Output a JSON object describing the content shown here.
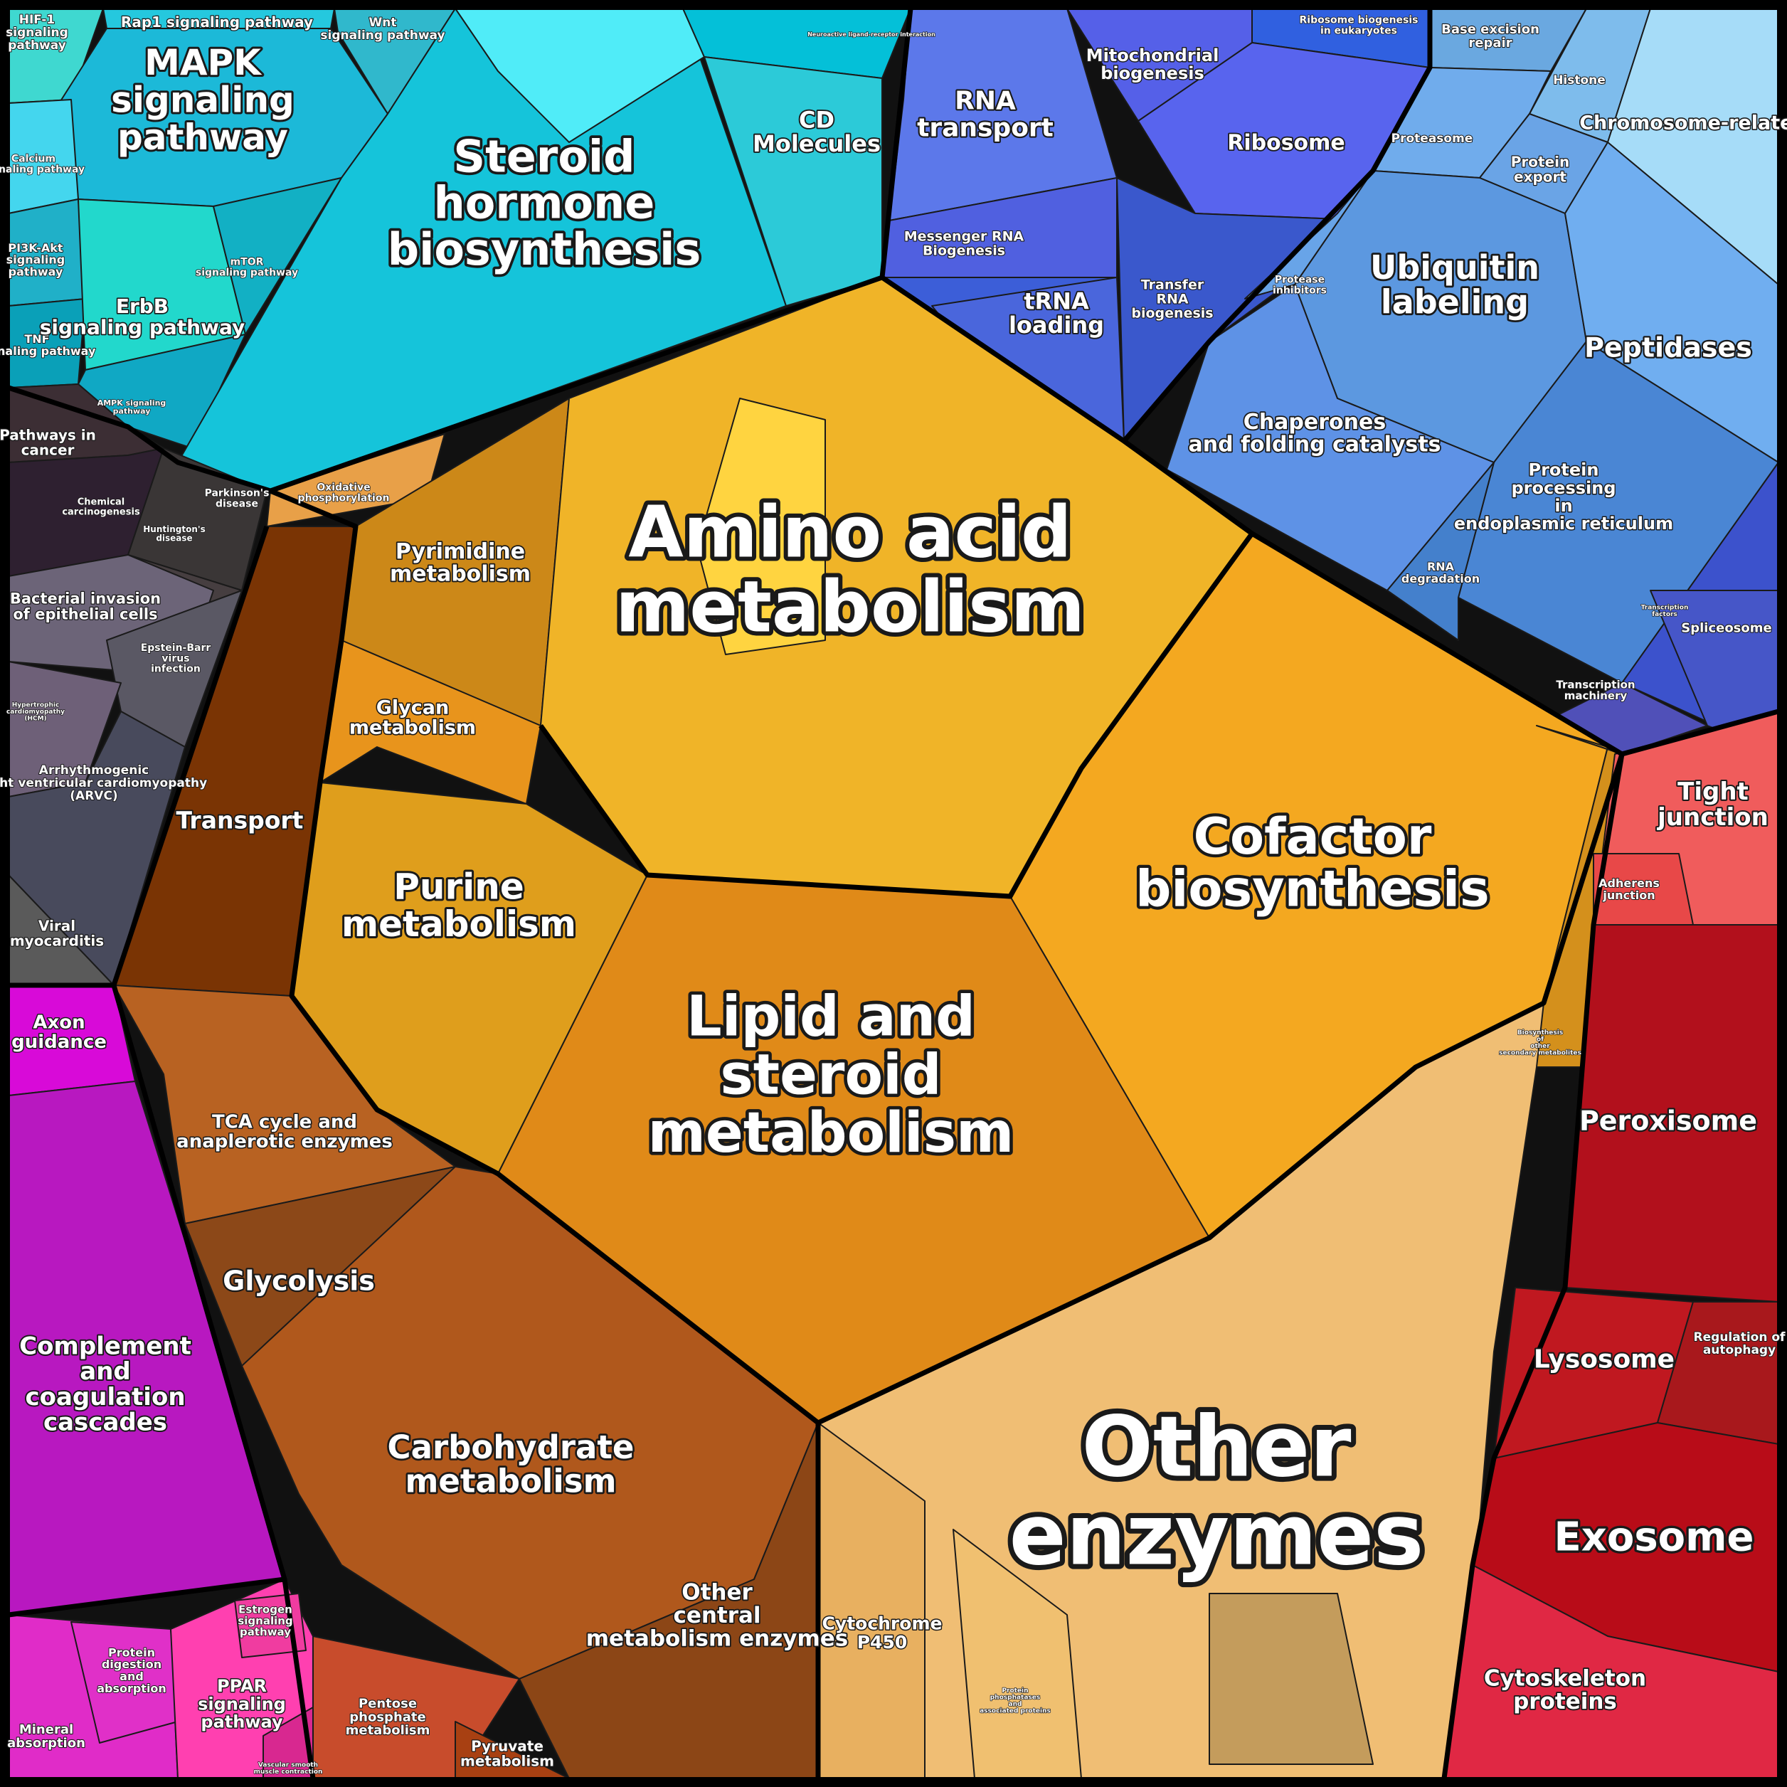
{
  "title": "",
  "colors": {
    "cyan": "#12c9dc",
    "blue": "#5d7bf0",
    "lightblue": "#7db4ef",
    "orange": "#f0a820",
    "darkorange": "#e08a18",
    "brown": "#9a4a12",
    "tan": "#e8b670",
    "magenta": "#c419c4",
    "red": "#c61220",
    "gray": "#4c4c58"
  },
  "labels": {
    "hif1": "HIF-1 signaling pathway",
    "rap1": "Rap1 signaling pathway",
    "wnt": "Wnt signaling pathway",
    "mapk": "MAPK signaling pathway",
    "calcium": "Calcium signaling pathway",
    "pi3k": "PI3K-Akt signaling pathway",
    "tnf": "TNF signaling pathway",
    "erbb": "ErbB signaling pathway",
    "mtor": "mTOR signaling pathway",
    "ampk": "AMPK signaling pathway",
    "neuro": "Neuroactive ligand-receptor interaction",
    "cd": "CD Molecules",
    "steroid_hormone": "Steroid hormone biosynthesis",
    "rna_transport": "RNA transport",
    "mito": "Mitochondrial biogenesis",
    "ribosome_bio": "Ribosome biogenesis in eukaryotes",
    "ribosome": "Ribosome",
    "mrna": "Messenger RNA Biogenesis",
    "trna_loading": "tRNA loading",
    "trna_bio": "Transfer RNA biogenesis",
    "base_excision": "Base excision repair",
    "histone": "Histone",
    "chromosome": "Chromosome-related",
    "proteasome": "Proteasome",
    "protein_export": "Protein export",
    "protease_inhib": "Protease inhibitors",
    "ubiquitin": "Ubiquitin labeling",
    "peptidases": "Peptidases",
    "chaperones": "Chaperones and folding catalysts",
    "protein_processing": "Protein processing in endoplasmic reticulum",
    "rna_degradation": "RNA degradation",
    "transcription_factors": "Transcription factors",
    "spliceosome": "Spliceosome",
    "transcription_machinery": "Transcription machinery",
    "pathways_cancer": "Pathways in cancer",
    "chemical_carcinogenesis": "Chemical carcinogenesis",
    "parkinsons": "Parkinson's disease",
    "huntingtons": "Huntington's disease",
    "bacterial": "Bacterial invasion of epithelial cells",
    "ebv": "Epstein-Barr virus infection",
    "hcm": "Hypertrophic cardiomyopathy (HCM)",
    "arvc": "Arrhythmogenic right ventricular cardiomyopathy (ARVC)",
    "viral_myocarditis": "Viral myocarditis",
    "oxphos": "Oxidative phosphorylation",
    "pyrimidine": "Pyrimidine metabolism",
    "glycan": "Glycan metabolism",
    "transport": "Transport",
    "purine": "Purine metabolism",
    "amino_acid": "Amino acid metabolism",
    "cofactor": "Cofactor biosynthesis",
    "lipid": "Lipid and steroid metabolism",
    "secondary": "Biosynthesis of other secondary metabolites",
    "tight_junction": "Tight junction",
    "adherens": "Adherens junction",
    "peroxisome": "Peroxisome",
    "lysosome": "Lysosome",
    "autophagy": "Regulation of autophagy",
    "exosome": "Exosome",
    "cytoskeleton": "Cytoskeleton proteins",
    "axon": "Axon guidance",
    "complement": "Complement and coagulation cascades",
    "tca": "TCA cycle and anaplerotic enzymes",
    "glycolysis": "Glycolysis",
    "carbohydrate": "Carbohydrate metabolism",
    "other_central": "Other central metabolism enzymes",
    "other_enzymes": "Other enzymes",
    "cyp450": "Cytochrome P450",
    "protein_phosphatases": "Protein phosphatases and associated proteins",
    "pentose": "Pentose phosphate metabolism",
    "pyruvate": "Pyruvate metabolism",
    "protein_digestion": "Protein digestion and absorption",
    "estrogen": "Estrogen signaling pathway",
    "ppar": "PPAR signaling pathway",
    "mineral": "Mineral absorption",
    "vascular": "Vascular smooth muscle contraction"
  }
}
